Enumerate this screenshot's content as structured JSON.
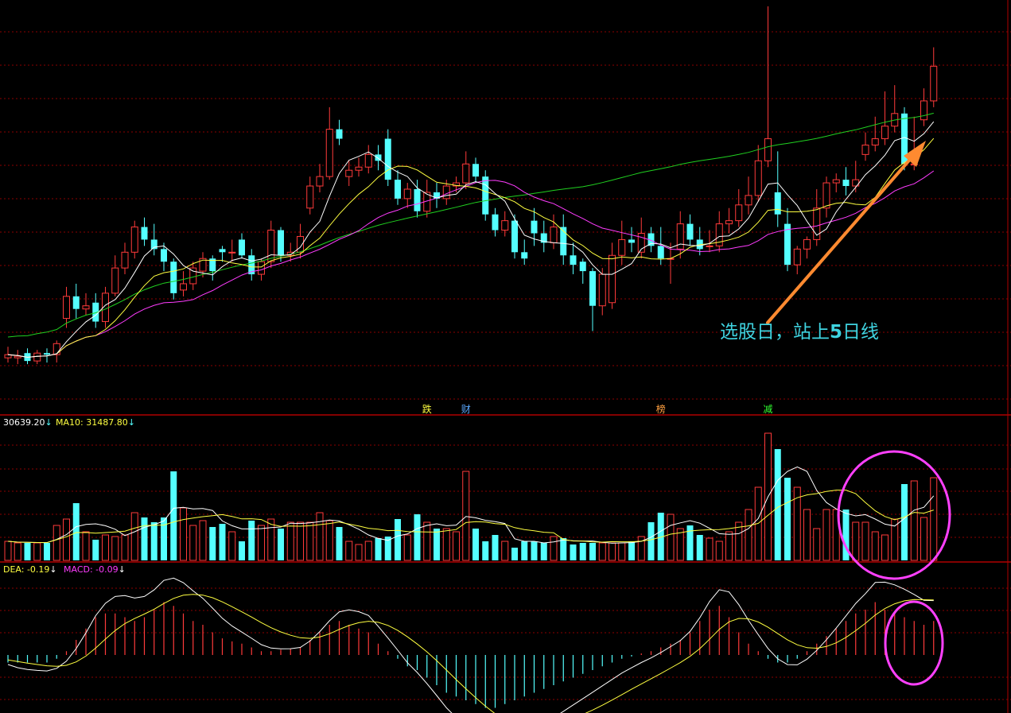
{
  "colors": {
    "up": "#ff3a3a",
    "down": "#54ffff",
    "ma5": "#ffffff",
    "ma10": "#ffff40",
    "ma20": "#ff3cff",
    "ma60": "#20d020",
    "grid": "#8b0000",
    "arrow": "#ff8a30",
    "circle": "#ff40ff",
    "label_cyan": "#3fd3e0"
  },
  "annotation": {
    "text_a": "选股日，站上",
    "text_num": "5",
    "text_b": "日线"
  },
  "event_tags": [
    {
      "text": "跌",
      "index": 43,
      "color": "#ffff40"
    },
    {
      "text": "财",
      "index": 47,
      "color": "#5aa8ff"
    },
    {
      "text": "榜",
      "index": 67,
      "color": "#ffa040"
    },
    {
      "text": "减",
      "index": 78,
      "color": "#30ff30"
    }
  ],
  "volume_panel": {
    "ma5_label": "30639.20",
    "ma10_label": "MA10: 31487.80",
    "arrow": "↓"
  },
  "macd_panel": {
    "dea_label": "DEA: -0.19",
    "macd_label": "MACD: -0.09",
    "arrow": "↓"
  },
  "chart_data": {
    "type": "candlestick",
    "title": "",
    "x": [
      0,
      1,
      2,
      3,
      4,
      5,
      6,
      7,
      8,
      9,
      10,
      11,
      12,
      13,
      14,
      15,
      16,
      17,
      18,
      19,
      20,
      21,
      22,
      23,
      24,
      25,
      26,
      27,
      28,
      29,
      30,
      31,
      32,
      33,
      34,
      35,
      36,
      37,
      38,
      39,
      40,
      41,
      42,
      43,
      44,
      45,
      46,
      47,
      48,
      49,
      50,
      51,
      52,
      53,
      54,
      55,
      56,
      57,
      58,
      59,
      60,
      61,
      62,
      63,
      64,
      65,
      66,
      67,
      68,
      69,
      70,
      71,
      72,
      73,
      74,
      75,
      76,
      77,
      78,
      79,
      80,
      81,
      82,
      83,
      84,
      85,
      86,
      87,
      88,
      89,
      90,
      91,
      92,
      93,
      94,
      95
    ],
    "open": [
      0.25,
      0.25,
      0.4,
      0.15,
      0.4,
      0.35,
      1.5,
      2.2,
      1.8,
      2.0,
      1.4,
      2.3,
      3.1,
      3.6,
      4.4,
      4.0,
      3.7,
      3.3,
      2.4,
      2.6,
      3.0,
      3.4,
      3.7,
      3.6,
      4.0,
      3.5,
      2.9,
      3.3,
      4.3,
      3.5,
      3.6,
      5.0,
      5.7,
      6.0,
      7.5,
      6.0,
      6.2,
      6.3,
      6.7,
      7.2,
      5.9,
      5.3,
      5.6,
      4.9,
      5.5,
      5.3,
      5.7,
      5.8,
      6.4,
      6.0,
      4.8,
      4.3,
      4.6,
      3.6,
      4.6,
      4.2,
      3.9,
      4.4,
      3.5,
      3.3,
      3.0,
      1.9,
      2.0,
      3.5,
      4.0,
      3.6,
      4.2,
      3.8,
      3.4,
      3.7,
      4.5,
      4.0,
      3.8,
      3.8,
      4.5,
      4.6,
      5.1,
      5.4,
      6.5,
      5.5,
      4.5,
      3.2,
      3.7,
      4.0,
      5.0,
      5.8,
      5.9,
      5.7,
      6.7,
      7.0,
      7.2,
      7.6,
      8.0,
      6.4,
      7.8,
      8.4
    ],
    "close": [
      0.35,
      0.3,
      0.15,
      0.4,
      0.35,
      0.7,
      2.2,
      1.8,
      1.9,
      1.4,
      2.3,
      3.1,
      3.6,
      4.4,
      4.0,
      3.7,
      3.3,
      2.3,
      2.6,
      3.1,
      3.4,
      3.0,
      3.6,
      3.6,
      3.5,
      2.9,
      3.3,
      4.3,
      3.5,
      3.6,
      4.1,
      5.7,
      6.0,
      7.5,
      7.2,
      6.2,
      6.3,
      6.7,
      6.5,
      5.9,
      5.3,
      5.6,
      4.9,
      5.5,
      5.3,
      5.7,
      5.8,
      6.4,
      6.0,
      4.8,
      4.3,
      4.6,
      3.6,
      3.4,
      4.2,
      3.9,
      4.4,
      3.5,
      3.2,
      3.0,
      1.9,
      2.9,
      3.5,
      4.0,
      3.9,
      4.2,
      3.8,
      3.4,
      3.4,
      4.5,
      4.0,
      3.7,
      3.8,
      4.5,
      4.6,
      5.1,
      5.4,
      6.5,
      7.2,
      4.8,
      3.2,
      3.7,
      4.0,
      5.0,
      5.8,
      5.9,
      5.7,
      5.9,
      7.0,
      7.2,
      7.6,
      8.0,
      6.4,
      6.4,
      8.4,
      9.5
    ],
    "high": [
      0.6,
      0.5,
      0.55,
      0.5,
      0.55,
      0.8,
      2.5,
      2.6,
      2.3,
      2.3,
      2.5,
      3.5,
      3.9,
      4.6,
      4.7,
      4.5,
      3.9,
      3.4,
      3.0,
      3.3,
      3.6,
      3.5,
      3.8,
      4.0,
      4.2,
      3.7,
      3.4,
      4.6,
      4.4,
      3.9,
      4.5,
      6.0,
      6.4,
      8.2,
      7.8,
      6.5,
      6.6,
      7.0,
      7.0,
      7.5,
      6.2,
      5.8,
      5.9,
      5.9,
      5.8,
      5.9,
      6.0,
      6.8,
      6.6,
      6.2,
      5.0,
      4.9,
      4.8,
      4.0,
      5.0,
      4.6,
      4.8,
      4.8,
      3.9,
      3.4,
      3.1,
      3.1,
      3.9,
      4.6,
      4.4,
      4.7,
      4.4,
      4.4,
      3.9,
      4.9,
      4.8,
      4.4,
      4.3,
      4.9,
      5.0,
      5.6,
      6.0,
      7.0,
      11.4,
      6.8,
      5.0,
      3.8,
      4.1,
      5.6,
      6.0,
      6.1,
      6.3,
      6.5,
      7.4,
      7.9,
      8.7,
      8.9,
      8.2,
      7.9,
      8.8,
      10.1
    ],
    "low": [
      0.1,
      0.05,
      0.05,
      0.05,
      0.1,
      0.1,
      1.2,
      1.5,
      1.6,
      1.2,
      1.2,
      2.2,
      2.9,
      3.4,
      3.8,
      3.5,
      3.0,
      2.1,
      2.2,
      2.4,
      2.8,
      2.7,
      3.3,
      3.3,
      3.4,
      2.7,
      2.7,
      3.1,
      3.3,
      3.3,
      3.4,
      4.8,
      5.5,
      5.9,
      7.0,
      5.7,
      6.0,
      6.1,
      6.2,
      5.7,
      5.1,
      5.0,
      4.7,
      4.7,
      5.0,
      5.1,
      5.5,
      5.6,
      5.8,
      4.6,
      4.1,
      4.1,
      3.4,
      3.2,
      3.8,
      3.6,
      3.7,
      3.2,
      2.9,
      2.6,
      1.1,
      1.6,
      1.8,
      3.2,
      3.6,
      3.4,
      3.6,
      3.2,
      2.6,
      3.4,
      3.8,
      3.5,
      3.6,
      3.6,
      4.2,
      4.4,
      4.8,
      5.2,
      6.3,
      4.4,
      3.0,
      2.9,
      3.4,
      3.8,
      4.7,
      5.5,
      5.4,
      5.5,
      6.5,
      6.8,
      7.0,
      7.4,
      6.2,
      6.2,
      7.6,
      8.2
    ],
    "volume": [
      0.6,
      0.55,
      0.55,
      0.55,
      0.55,
      1.1,
      1.3,
      1.8,
      0.9,
      0.65,
      0.8,
      0.75,
      0.8,
      1.5,
      1.35,
      1.2,
      1.35,
      2.8,
      1.65,
      1.1,
      1.25,
      1.05,
      1.15,
      0.9,
      0.6,
      1.25,
      1.1,
      1.3,
      1.0,
      1.2,
      1.2,
      1.2,
      1.5,
      1.25,
      1.05,
      0.6,
      0.5,
      0.6,
      0.7,
      0.75,
      1.3,
      0.8,
      1.45,
      1.2,
      1.0,
      1.0,
      0.9,
      2.8,
      1.0,
      0.6,
      0.8,
      0.6,
      0.4,
      0.6,
      0.6,
      0.55,
      0.75,
      0.7,
      0.5,
      0.55,
      0.55,
      0.55,
      0.55,
      0.55,
      0.6,
      0.75,
      1.2,
      1.5,
      1.45,
      1.0,
      1.1,
      0.8,
      0.7,
      0.6,
      0.9,
      1.2,
      1.6,
      2.3,
      4.0,
      3.5,
      2.6,
      2.3,
      1.6,
      1.0,
      1.6,
      1.6,
      1.6,
      1.2,
      1.2,
      0.9,
      0.8,
      1.3,
      2.4,
      2.5,
      1.35,
      2.6
    ],
    "macd_hist": [
      -0.1,
      -0.1,
      -0.1,
      -0.1,
      -0.1,
      -0.05,
      0.05,
      0.2,
      0.35,
      0.5,
      0.55,
      0.55,
      0.5,
      0.45,
      0.5,
      0.6,
      0.7,
      0.65,
      0.55,
      0.45,
      0.4,
      0.3,
      0.22,
      0.18,
      0.15,
      0.1,
      0.05,
      0.05,
      0.07,
      0.08,
      0.1,
      0.2,
      0.3,
      0.4,
      0.45,
      0.4,
      0.35,
      0.3,
      0.15,
      0.05,
      -0.05,
      -0.15,
      -0.2,
      -0.3,
      -0.4,
      -0.5,
      -0.55,
      -0.6,
      -0.65,
      -0.7,
      -0.7,
      -0.65,
      -0.6,
      -0.55,
      -0.5,
      -0.45,
      -0.4,
      -0.35,
      -0.3,
      -0.25,
      -0.2,
      -0.15,
      -0.1,
      -0.05,
      -0.02,
      0.02,
      0.05,
      0.1,
      0.15,
      0.2,
      0.3,
      0.45,
      0.6,
      0.65,
      0.5,
      0.3,
      0.15,
      0.05,
      -0.05,
      -0.1,
      -0.1,
      -0.05,
      0.05,
      0.15,
      0.25,
      0.35,
      0.45,
      0.55,
      0.6,
      0.7,
      0.6,
      0.55,
      0.5,
      0.45,
      0.4,
      0.45
    ]
  }
}
